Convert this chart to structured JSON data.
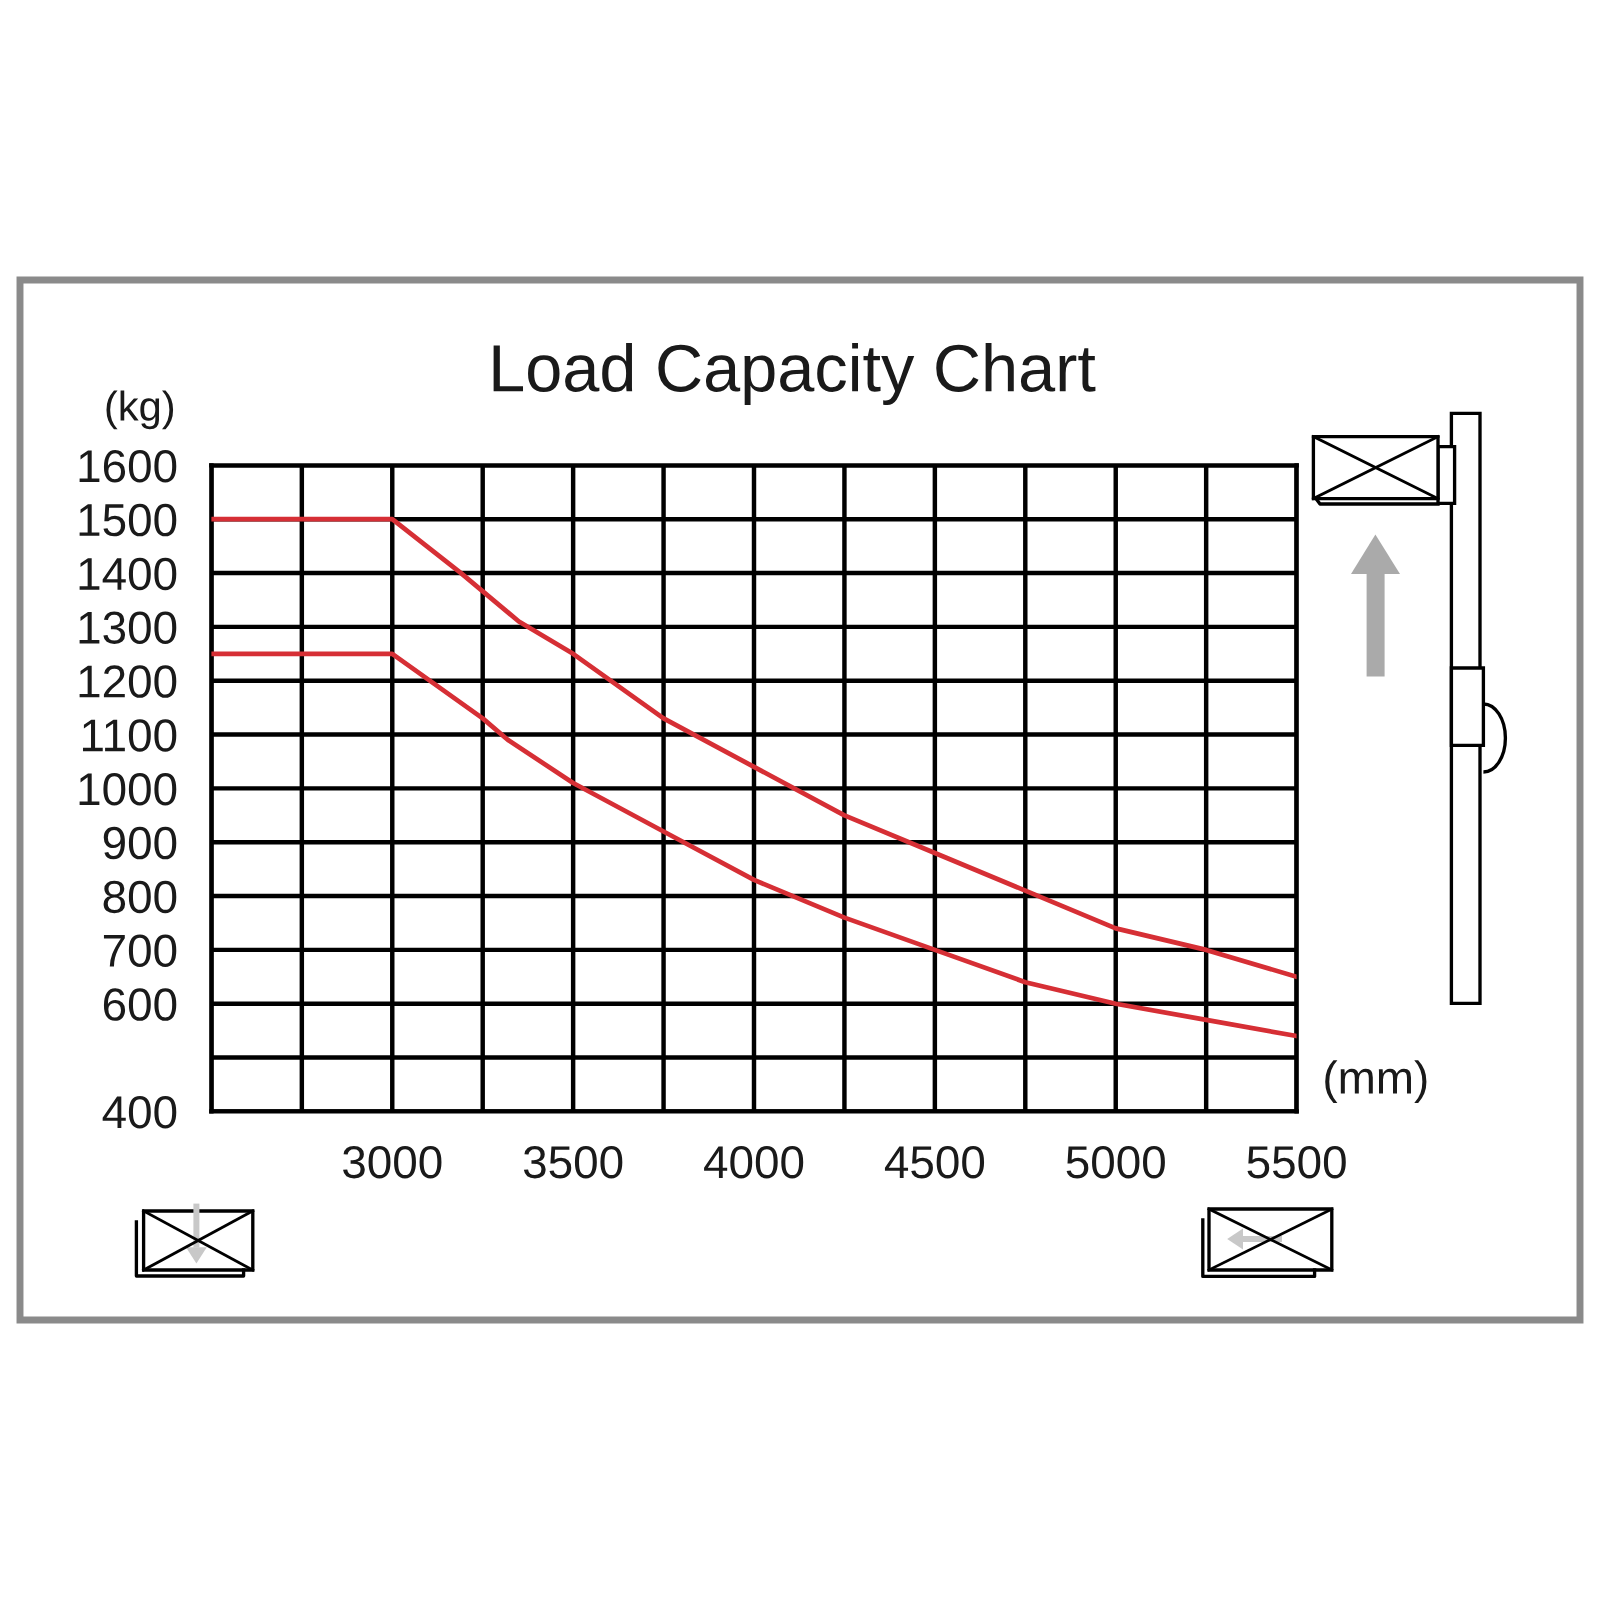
{
  "chart_data": {
    "type": "line",
    "title": "Load Capacity Chart",
    "xlabel": "(mm)",
    "ylabel": "(kg)",
    "series": [
      {
        "color": "#d62f35",
        "x": [
          2500,
          3000,
          3190,
          3350,
          3500,
          3750,
          4000,
          4250,
          4500,
          4750,
          5000,
          5250,
          5500
        ],
        "values": [
          1500,
          1500,
          1400,
          1310,
          1250,
          1130,
          1040,
          950,
          880,
          810,
          740,
          700,
          650
        ]
      },
      {
        "color": "#d62f35",
        "x": [
          2500,
          3000,
          3250,
          3320,
          3500,
          3750,
          4000,
          4250,
          4500,
          4750,
          5000,
          5250,
          5500
        ],
        "values": [
          1250,
          1250,
          1130,
          1090,
          1010,
          920,
          830,
          760,
          700,
          640,
          600,
          570,
          540
        ]
      }
    ],
    "xlim": [
      2500,
      5500
    ],
    "xticks": [
      {
        "value": 2500,
        "label": null
      },
      {
        "value": 2750,
        "label": null
      },
      3000,
      {
        "value": 3250,
        "label": null
      },
      3500,
      {
        "value": 3750,
        "label": null
      },
      4000,
      {
        "value": 4250,
        "label": null
      },
      4500,
      {
        "value": 4750,
        "label": null
      },
      5000,
      {
        "value": 5250,
        "label": null
      },
      5500
    ],
    "ylim": [
      400,
      1600
    ],
    "yticks": [
      400,
      {
        "value": 500,
        "label": null
      },
      600,
      700,
      800,
      900,
      1000,
      1100,
      1200,
      1300,
      1400,
      1500,
      1600
    ],
    "grid": true,
    "line_style": "solid"
  }
}
